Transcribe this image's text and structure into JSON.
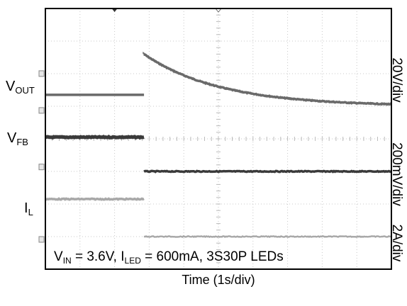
{
  "chart_data": {
    "type": "line",
    "title": "",
    "xlabel": "Time (1s/div)",
    "time_per_div_s": 1,
    "x_divisions": 10,
    "y_divisions": 8,
    "grid": true,
    "step_time_div": 2.85,
    "condition": {
      "vin_sym": "V",
      "vin_sub": "IN",
      "vin_val": " = 3.6V, ",
      "iled_sym": "I",
      "iled_sub": "LED",
      "iled_val": " = 600mA, 3S30P LEDs"
    },
    "channel_labels": {
      "vout": {
        "sym": "V",
        "sub": "OUT"
      },
      "vfb": {
        "sym": "V",
        "sub": "FB"
      },
      "il": {
        "sym": "I",
        "sub": "L"
      }
    },
    "scale_labels": [
      "20V/div",
      "200mV/div",
      "2A/div"
    ],
    "series": [
      {
        "channel": "vout",
        "color": "#6a6a6a",
        "before_div": 5.35,
        "jump_div": 6.6,
        "settle_div": 5.0,
        "tau_div": 2.2,
        "width": 3.5
      },
      {
        "channel": "vfb",
        "color": "#3a3a3a",
        "before_div": 4.05,
        "after_div": 3.0,
        "width": 5
      },
      {
        "channel": "il",
        "color": "#a8a8a8",
        "before_div": 2.15,
        "after_div": 1.0,
        "width": 3.5
      }
    ]
  }
}
